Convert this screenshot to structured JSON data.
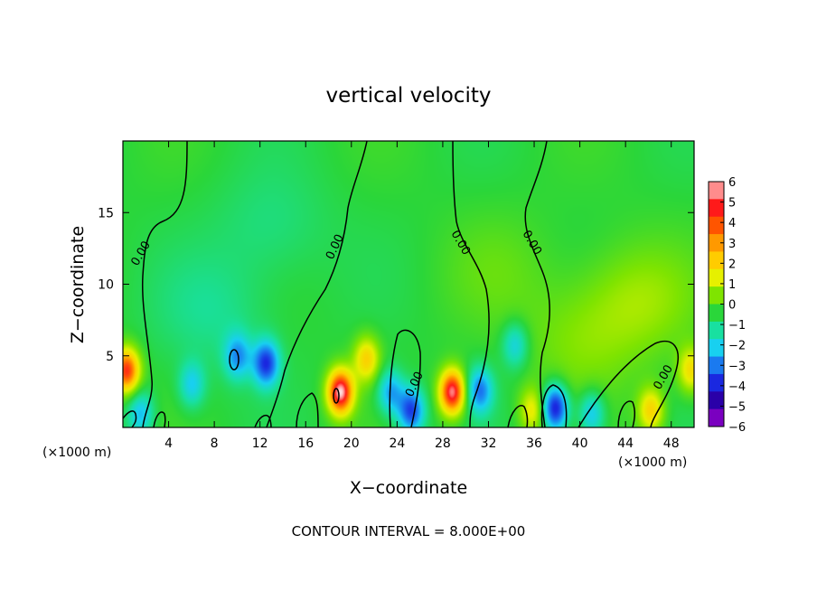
{
  "chart_data": {
    "type": "heatmap",
    "title": "vertical velocity",
    "xlabel": "X−coordinate",
    "ylabel": "Z−coordinate",
    "x_unit_left": "(×1000 m)",
    "x_unit_right": "(×1000 m)",
    "footer": "CONTOUR INTERVAL = 8.000E+00",
    "xlim": [
      0,
      50
    ],
    "ylim": [
      0,
      20
    ],
    "x_ticks": [
      4,
      8,
      12,
      16,
      20,
      24,
      28,
      32,
      36,
      40,
      44,
      48
    ],
    "y_ticks": [
      5,
      10,
      15
    ],
    "contour_label": "0.00",
    "colorbar": {
      "range": [
        -6,
        6
      ],
      "ticks": [
        "6",
        "5",
        "4",
        "3",
        "2",
        "1",
        "0",
        "−1",
        "−2",
        "−3",
        "−4",
        "−5",
        "−6"
      ],
      "colors": [
        "#ff8c8c",
        "#ff1a1a",
        "#ff5500",
        "#ff9900",
        "#ffcc00",
        "#e6f000",
        "#7fe400",
        "#2ad63a",
        "#18e0a0",
        "#18d0f0",
        "#1a7af0",
        "#1a28e0",
        "#2a00a8",
        "#7a00c0"
      ]
    },
    "features": [
      {
        "x": 0.3,
        "z": 4.0,
        "w": 4.8
      },
      {
        "x": 19.0,
        "z": 2.5,
        "w": 5.8
      },
      {
        "x": 28.8,
        "z": 2.5,
        "w": 5.6
      },
      {
        "x": 12.5,
        "z": 4.5,
        "w": -3.8
      },
      {
        "x": 10.0,
        "z": 5.0,
        "w": -2.5
      },
      {
        "x": 31.2,
        "z": 2.6,
        "w": -3.0
      },
      {
        "x": 37.8,
        "z": 1.4,
        "w": -4.5
      },
      {
        "x": 23.4,
        "z": 2.5,
        "w": -2.6
      },
      {
        "x": 25.2,
        "z": 1.2,
        "w": -3.8
      },
      {
        "x": 34.3,
        "z": 5.8,
        "w": -2.0
      },
      {
        "x": 6.0,
        "z": 3.0,
        "w": -2.0
      },
      {
        "x": 1.5,
        "z": 1.0,
        "w": -2.3
      },
      {
        "x": 41.0,
        "z": 1.0,
        "w": -2.3
      },
      {
        "x": 21.3,
        "z": 4.8,
        "w": 2.8
      },
      {
        "x": 46.2,
        "z": 1.2,
        "w": 2.8
      },
      {
        "x": 35.8,
        "z": 1.2,
        "w": 2.2
      },
      {
        "x": 49.7,
        "z": 4.0,
        "w": 2.5
      },
      {
        "x": 13.0,
        "z": 14.0,
        "w": -0.7
      },
      {
        "x": 8.0,
        "z": 8.0,
        "w": -0.8
      },
      {
        "x": 33.0,
        "z": 11.0,
        "w": 0.5
      },
      {
        "x": 45.0,
        "z": 9.0,
        "w": 1.2
      },
      {
        "x": 40.0,
        "z": 6.0,
        "w": 0.9
      }
    ]
  }
}
